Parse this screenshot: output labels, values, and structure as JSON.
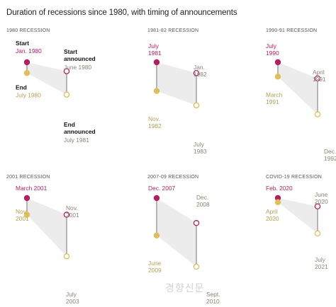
{
  "chart_title": "Duration of recessions since 1980, with timing of announcements",
  "watermark": "경향신문",
  "colors": {
    "start": "#b51f5e",
    "end": "#e2be55",
    "announcement_ring": "#b51f5e",
    "end_announcement_ring": "#e2be55",
    "line": "#9a9a9a",
    "shade": "#ececec",
    "start_text": "#c2185b",
    "end_text": "#b8a050",
    "announce_text": "#8a8570"
  },
  "legend_labels": {
    "start": "Start",
    "end": "End",
    "start_announced": [
      "Start",
      "announced"
    ],
    "end_announced": [
      "End",
      "announced"
    ]
  },
  "chart_data": {
    "type": "timeline-small-multiples",
    "panels": [
      {
        "title": "1980 RECESSION",
        "start": "Jan. 1980",
        "end": "July 1980",
        "start_announced": "June 1980",
        "end_announced": "July 1981",
        "start_label": [
          "Jan. 1980"
        ],
        "end_label": [
          "July 1980"
        ],
        "start_announced_label": [
          "June 1980"
        ],
        "end_announced_label": [
          "July 1981"
        ],
        "legend": true
      },
      {
        "title": "1981-82 RECESSION",
        "start": "July 1981",
        "end": "Nov. 1982",
        "start_announced": "Jan. 1982",
        "end_announced": "July 1983",
        "start_label": [
          "July",
          "1981"
        ],
        "end_label": [
          "Nov.",
          "1982"
        ],
        "start_announced_label": [
          "Jan.",
          "1982"
        ],
        "end_announced_label": [
          "July",
          "1983"
        ]
      },
      {
        "title": "1990-91 RECESSION",
        "start": "July 1990",
        "end": "March 1991",
        "start_announced": "April 1991",
        "end_announced": "Dec. 1992",
        "start_label": [
          "July",
          "1990"
        ],
        "end_label": [
          "March",
          "1991"
        ],
        "start_announced_label": [
          "April",
          "1991"
        ],
        "end_announced_label": [
          "Dec.",
          "1992"
        ]
      },
      {
        "title": "2001 RECESSION",
        "start": "March 2001",
        "end": "Nov. 2001",
        "start_announced": "Nov. 2001",
        "end_announced": "July 2003",
        "start_label": [
          "March 2001"
        ],
        "end_label": [
          "Nov.",
          "2001"
        ],
        "start_announced_label": [
          "Nov.",
          "2001"
        ],
        "end_announced_label": [
          "July",
          "2003"
        ]
      },
      {
        "title": "2007-09 RECESSION",
        "start": "Dec. 2007",
        "end": "June 2009",
        "start_announced": "Dec. 2008",
        "end_announced": "Sept. 2010",
        "start_label": [
          "Dec. 2007"
        ],
        "end_label": [
          "June",
          "2009"
        ],
        "start_announced_label": [
          "Dec.",
          "2008"
        ],
        "end_announced_label": [
          "Sept.",
          "2010"
        ]
      },
      {
        "title": "COVID-19 RECESSION",
        "start": "Feb. 2020",
        "end": "April 2020",
        "start_announced": "June 2020",
        "end_announced": "July 2021",
        "start_label": [
          "Feb. 2020"
        ],
        "end_label": [
          "April",
          "2020"
        ],
        "start_announced_label": [
          "June",
          "2020"
        ],
        "end_announced_label": [
          "July",
          "2021"
        ]
      }
    ]
  }
}
